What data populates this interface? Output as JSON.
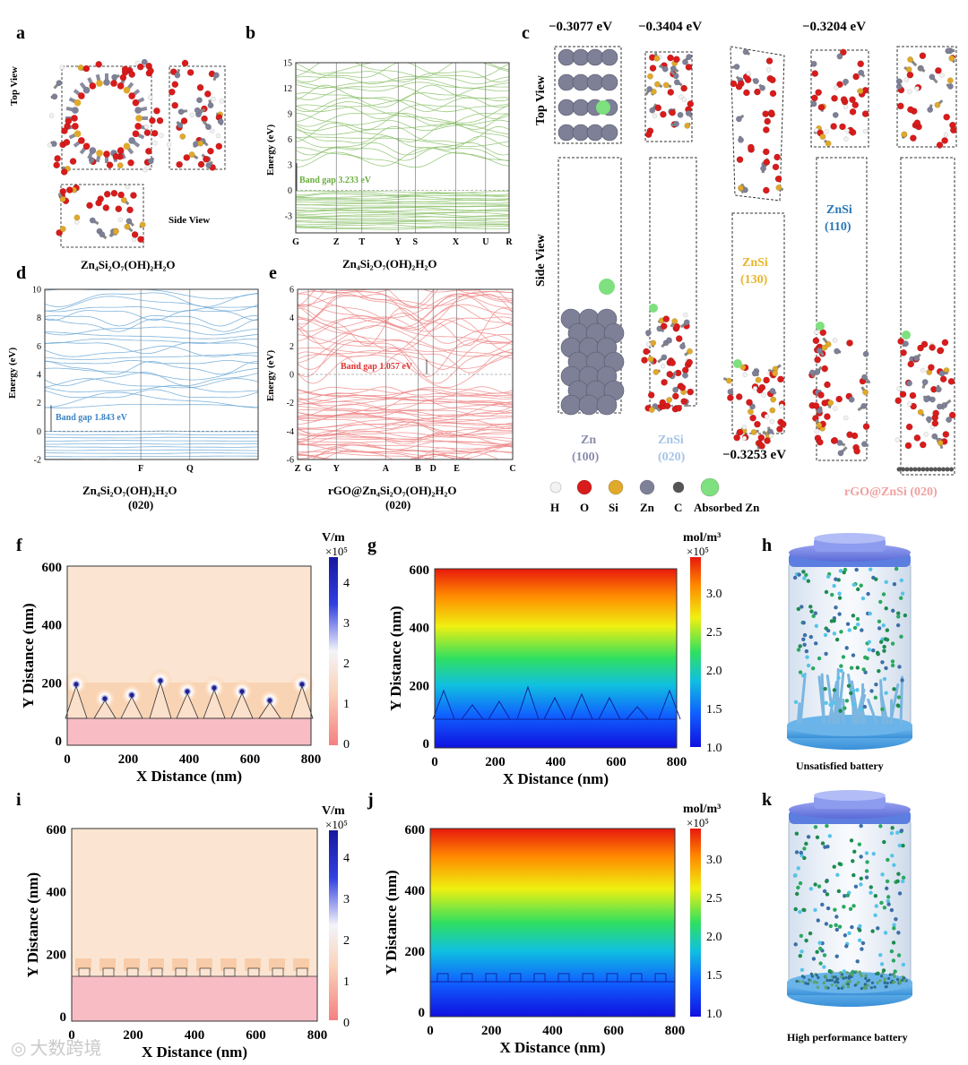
{
  "panels": {
    "a": "a",
    "b": "b",
    "c": "c",
    "d": "d",
    "e": "e",
    "f": "f",
    "g": "g",
    "h": "h",
    "i": "i",
    "j": "j",
    "k": "k"
  },
  "panel_a": {
    "top_view": "Top View",
    "side_view": "Side View",
    "caption": "Zn₄Si₂O₇(OH)₂H₂O"
  },
  "panel_b": {
    "ylabel": "Energy (eV)",
    "yticks": [
      "15",
      "12",
      "9",
      "6",
      "3",
      "0",
      "-3"
    ],
    "kpoints": [
      "G",
      "Z",
      "T",
      "Y",
      "S",
      "X",
      "U",
      "R"
    ],
    "gap_label": "Band gap  3.233 eV",
    "caption": "Zn₄Si₂O₇(OH)₂H₂O",
    "color": "#8cc26b"
  },
  "panel_c": {
    "energies": [
      "−0.3077 eV",
      "−0.3404 eV",
      "−0.3204 eV",
      "−0.3253 eV"
    ],
    "top_view": "Top View",
    "side_view": "Side View",
    "labels": {
      "zn100": [
        "Zn",
        "(100)"
      ],
      "znsi020": [
        "ZnSi",
        "(020)"
      ],
      "znsi130": [
        "ZnSi",
        "(130)"
      ],
      "znsi110": [
        "ZnSi",
        "(110)"
      ],
      "rgo": "rGO@ZnSi  (020)"
    },
    "legend": [
      "H",
      "O",
      "Si",
      "Zn",
      "C",
      "Absorbed Zn"
    ],
    "legend_colors": [
      "#f2f2f2",
      "#d81b1b",
      "#e0a92a",
      "#7d8096",
      "#555555",
      "#7ee07e"
    ]
  },
  "panel_d": {
    "ylabel": "Energy (eV)",
    "yticks": [
      "10",
      "8",
      "6",
      "4",
      "2",
      "0",
      "-2"
    ],
    "kpoints": [
      "F",
      "Q"
    ],
    "gap_label": "Band gap 1.843 eV",
    "caption_line1": "Zn₄Si₂O₇(OH)₂H₂O",
    "caption_line2": "(020)",
    "color": "#6aa7d6"
  },
  "panel_e": {
    "ylabel": "Energy (eV)",
    "yticks": [
      "6",
      "4",
      "2",
      "0",
      "-2",
      "-4",
      "-6"
    ],
    "kpoints": [
      "Z",
      "G",
      "Y",
      "A",
      "B",
      "D",
      "E",
      "C"
    ],
    "gap_label": "Band gap 1.057 eV",
    "caption_line1": "rGO@Zn₄Si₂O₇(OH)₂H₂O",
    "caption_line2": "(020)",
    "color": "#f08a8a"
  },
  "panel_f": {
    "unit": "V/m",
    "exp": "×10⁵",
    "xlabel": "X Distance (nm)",
    "ylabel": "Y Distance (nm)",
    "xticks": [
      "0",
      "200",
      "400",
      "600",
      "800"
    ],
    "yticks": [
      "600",
      "400",
      "200",
      "0"
    ],
    "cbar_ticks": [
      "4",
      "3",
      "2",
      "1",
      "0"
    ]
  },
  "panel_g": {
    "unit": "mol/m³",
    "exp": "×10⁵",
    "xlabel": "X Distance (nm)",
    "ylabel": "Y Distance (nm)",
    "xticks": [
      "0",
      "200",
      "400",
      "600",
      "800"
    ],
    "yticks": [
      "600",
      "400",
      "200",
      "0"
    ],
    "cbar_ticks": [
      "3.0",
      "2.5",
      "2.0",
      "1.5",
      "1.0"
    ]
  },
  "panel_h": {
    "caption": "Unsatisfied battery"
  },
  "panel_i": {
    "unit": "V/m",
    "exp": "×10⁵",
    "xlabel": "X Distance (nm)",
    "ylabel": "Y Distance (nm)",
    "xticks": [
      "0",
      "200",
      "400",
      "600",
      "800"
    ],
    "yticks": [
      "600",
      "400",
      "200",
      "0"
    ],
    "cbar_ticks": [
      "4",
      "3",
      "2",
      "1",
      "0"
    ]
  },
  "panel_j": {
    "unit": "mol/m³",
    "exp": "×10⁵",
    "xlabel": "X Distance (nm)",
    "ylabel": "Y Distance (nm)",
    "xticks": [
      "0",
      "200",
      "400",
      "600",
      "800"
    ],
    "yticks": [
      "600",
      "400",
      "200",
      "0"
    ],
    "cbar_ticks": [
      "3.0",
      "2.5",
      "2.0",
      "1.5",
      "1.0"
    ]
  },
  "panel_k": {
    "caption": "High performance battery"
  },
  "watermark": "大数跨境"
}
